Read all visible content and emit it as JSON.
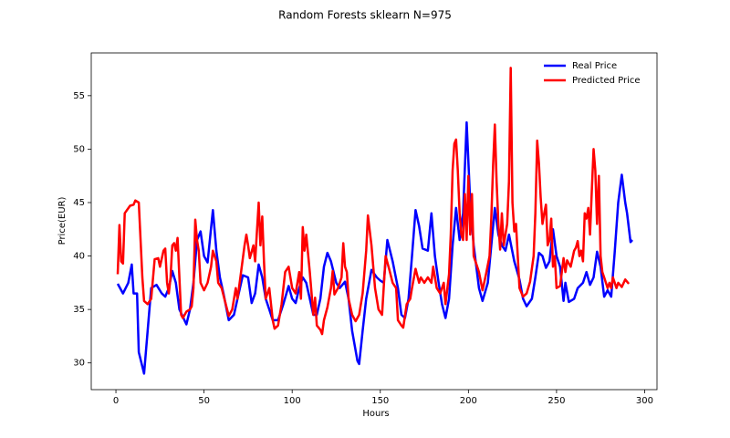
{
  "chart_data": {
    "type": "line",
    "title": "Random Forests sklearn N=975",
    "x_label": "Hours",
    "y_label": "Price(EUR)",
    "xlim": [
      -14,
      307
    ],
    "ylim": [
      27.5,
      59
    ],
    "xticks": [
      0,
      50,
      100,
      150,
      200,
      250,
      300
    ],
    "yticks": [
      30,
      35,
      40,
      45,
      50,
      55
    ],
    "legend": "upper right",
    "series": [
      {
        "name": "Real Price",
        "color": "#0000ff",
        "x": [
          1,
          4,
          7,
          9,
          10,
          12,
          13,
          16,
          18,
          20,
          23,
          26,
          28,
          30,
          32,
          34,
          36,
          40,
          42,
          44,
          46,
          48,
          50,
          52,
          55,
          57,
          59,
          61,
          64,
          67,
          69,
          72,
          75,
          77,
          79,
          81,
          83,
          85,
          87,
          89,
          92,
          95,
          98,
          100,
          102,
          104,
          106,
          108,
          110,
          112,
          114,
          116,
          118,
          120,
          122,
          125,
          127,
          130,
          132,
          134,
          137,
          138,
          140,
          142,
          145,
          148,
          150,
          152,
          154,
          157,
          160,
          162,
          164,
          166,
          168,
          170,
          172,
          174,
          177,
          179,
          181,
          183,
          185,
          187,
          189,
          191,
          193,
          195,
          197,
          199,
          201,
          203,
          206,
          208,
          211,
          213,
          215,
          217,
          219,
          221,
          223,
          226,
          229,
          231,
          233,
          236,
          238,
          240,
          242,
          244,
          246,
          248,
          250,
          252,
          254,
          255,
          257,
          260,
          262,
          265,
          267,
          269,
          271,
          273,
          275,
          277,
          279,
          281,
          283,
          285,
          287,
          289,
          290,
          292,
          293
        ],
        "values": [
          37.4,
          36.5,
          37.5,
          39.2,
          36.5,
          36.5,
          31,
          29,
          33,
          37,
          37.3,
          36.5,
          36.2,
          37,
          38.6,
          37.5,
          35,
          33.6,
          35,
          37.5,
          41.5,
          42.3,
          40,
          39.4,
          44.3,
          40.5,
          38,
          36.5,
          34,
          34.5,
          36,
          38.2,
          38,
          35.6,
          36.5,
          39.2,
          38,
          36,
          35,
          34,
          34,
          35.5,
          37.2,
          36,
          35.6,
          37,
          38,
          37.5,
          36,
          34.5,
          34.5,
          36,
          39,
          40.3,
          39.5,
          37.5,
          37,
          37.6,
          36,
          33,
          30.2,
          29.9,
          33,
          36,
          38.7,
          38,
          37.7,
          37.5,
          41.5,
          39.5,
          37,
          34.5,
          34.2,
          36,
          40,
          44.3,
          42.8,
          40.7,
          40.5,
          44,
          40,
          37.6,
          35.5,
          34.2,
          36,
          41,
          44.5,
          41.5,
          44,
          52.5,
          45,
          41,
          37,
          35.8,
          37.5,
          41,
          44.5,
          42,
          41,
          40.5,
          42,
          39.5,
          37.8,
          36,
          35.3,
          36,
          38,
          40.3,
          40,
          38.9,
          39.5,
          42.5,
          40,
          39,
          35.8,
          37.5,
          35.7,
          36,
          37,
          37.5,
          38.5,
          37.3,
          38,
          40.4,
          39,
          36.2,
          36.8,
          36.2,
          40.3,
          45,
          47.6,
          45,
          44,
          41.3,
          41.5
        ]
      },
      {
        "name": "Predicted Price",
        "color": "#ff0000",
        "x": [
          1,
          2,
          3,
          4,
          5,
          8,
          10,
          11,
          13,
          15,
          16,
          18,
          20,
          22,
          24,
          25,
          27,
          28,
          29,
          30,
          31,
          32,
          33,
          34,
          35,
          36,
          37,
          38,
          40,
          42,
          43,
          44,
          45,
          46,
          47,
          48,
          50,
          52,
          54,
          55,
          57,
          58,
          60,
          62,
          64,
          66,
          68,
          69,
          71,
          73,
          74,
          75,
          76,
          78,
          79,
          81,
          82,
          83,
          84,
          85,
          87,
          89,
          90,
          92,
          94,
          96,
          98,
          100,
          102,
          104,
          105,
          106,
          107,
          108,
          110,
          112,
          113,
          114,
          116,
          117,
          118,
          120,
          122,
          123,
          124,
          126,
          128,
          129,
          130,
          131,
          132,
          134,
          136,
          138,
          140,
          142,
          143,
          145,
          147,
          149,
          151,
          153,
          155,
          157,
          159,
          160,
          162,
          163,
          165,
          167,
          168,
          170,
          172,
          173,
          175,
          177,
          179,
          180,
          182,
          184,
          186,
          187,
          189,
          190,
          191,
          192,
          193,
          194,
          195,
          196,
          197,
          198,
          199,
          200,
          201,
          202,
          203,
          205,
          206,
          208,
          210,
          212,
          213,
          214,
          215,
          216,
          217,
          218,
          219,
          220,
          222,
          223,
          224,
          225,
          226,
          227,
          228,
          229,
          231,
          233,
          235,
          237,
          238,
          239,
          240,
          241,
          242,
          243,
          244,
          245,
          246,
          247,
          248,
          249,
          250,
          252,
          254,
          255,
          256,
          258,
          260,
          261,
          262,
          263,
          264,
          265,
          266,
          267,
          268,
          269,
          270,
          271,
          272,
          273,
          274,
          275,
          276,
          277,
          279,
          280,
          281,
          282,
          284,
          285,
          287,
          289,
          291
        ],
        "values": [
          38.3,
          42.9,
          39.5,
          39.3,
          44,
          44.7,
          44.8,
          45.2,
          45,
          38,
          35.8,
          35.5,
          36,
          39.7,
          39.8,
          39,
          40.5,
          40.7,
          37.5,
          36.5,
          38,
          41,
          41.2,
          40.5,
          41.7,
          38,
          34.5,
          34.2,
          34.8,
          35,
          35.3,
          37,
          43.4,
          41.5,
          40.5,
          37.5,
          36.8,
          37.5,
          39,
          40.5,
          39.5,
          37.5,
          37,
          35.7,
          34.4,
          35,
          37,
          36,
          38.5,
          41,
          42,
          41,
          39.8,
          41,
          39.5,
          45,
          41,
          43.7,
          39.5,
          36,
          37,
          34,
          33.2,
          33.5,
          35.5,
          38.5,
          39,
          37,
          36.5,
          38.5,
          36,
          42.7,
          40.5,
          42,
          38.5,
          34.5,
          36.1,
          33.5,
          33.1,
          32.7,
          34,
          35.2,
          37,
          38.6,
          36.4,
          37,
          38,
          41.2,
          39,
          38.5,
          36,
          34.5,
          33.9,
          34.5,
          36.5,
          40.5,
          43.8,
          41,
          37,
          35,
          34.5,
          40,
          38.8,
          37.5,
          37,
          34,
          33.5,
          33.3,
          35.5,
          36,
          37,
          38.8,
          37.5,
          38,
          37.5,
          38,
          37.5,
          39,
          37,
          36.5,
          37.5,
          35.5,
          38.3,
          42,
          48,
          50.5,
          50.9,
          48,
          44,
          42,
          41.5,
          45.8,
          41.5,
          47.5,
          42,
          45.8,
          40,
          39,
          38.5,
          36.8,
          38.3,
          40,
          43.5,
          48.5,
          52.3,
          47,
          43,
          40.6,
          44,
          41,
          43,
          47,
          57.6,
          45,
          42.3,
          43,
          40,
          37,
          36.2,
          36.5,
          37.6,
          40,
          44,
          50.8,
          48.7,
          45.5,
          43,
          44,
          44.8,
          41,
          41.5,
          43.5,
          39,
          40,
          37,
          37.2,
          39.8,
          38.5,
          39.6,
          39,
          40.5,
          40.8,
          41.4,
          40,
          40.5,
          39.5,
          44,
          43.5,
          44.5,
          42,
          46,
          50,
          48,
          43,
          47.5,
          40,
          38.5,
          38,
          37,
          37.5,
          37,
          38,
          37,
          37.5,
          37.1,
          37.8,
          37.4
        ]
      }
    ]
  }
}
